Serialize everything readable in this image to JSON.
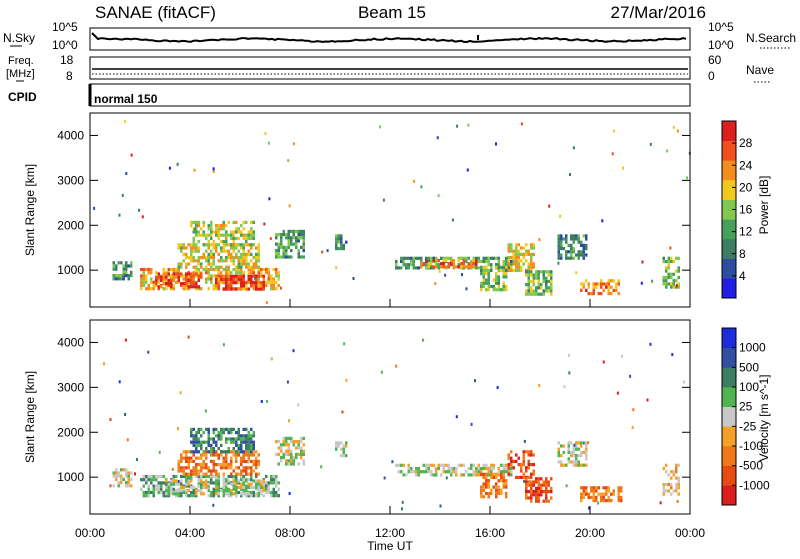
{
  "header": {
    "radar": "SANAE (fitACF)",
    "beam": "Beam 15",
    "date": "27/Mar/2016"
  },
  "sky_panel": {
    "left_label": "N.Sky",
    "right_label": "N.Search",
    "top_tick": "10^5",
    "bottom_tick": "10^0"
  },
  "freq_panel": {
    "left_label_1": "Freq.",
    "left_label_2": "[MHz]",
    "left_ticks": [
      "18",
      "8"
    ],
    "right_label": "Nave",
    "right_ticks": [
      "60",
      "0"
    ]
  },
  "cpid_panel": {
    "label": "CPID",
    "mode": "normal 150"
  },
  "axes": {
    "ylabel": "Slant Range [km]",
    "yticks": [
      1000,
      2000,
      3000,
      4000
    ],
    "xlabel": "Time UT",
    "xticks": [
      "00:00",
      "04:00",
      "08:00",
      "12:00",
      "16:00",
      "20:00",
      "00:00"
    ]
  },
  "colors": {
    "power": [
      "#1e1ee6",
      "#2d4ea0",
      "#3c7d64",
      "#46a05a",
      "#82c850",
      "#f0c81e",
      "#f58c1e",
      "#f0501e",
      "#dc1e1e"
    ],
    "velocity": [
      "#1e2ddc",
      "#3250a0",
      "#3c7d64",
      "#50b450",
      "#c8c8c8",
      "#f5a028",
      "#f07818",
      "#e64b14",
      "#dc1e1e"
    ]
  },
  "chart_data": [
    {
      "type": "heatmap",
      "title": "Power",
      "colorbar_label": "Power [dB]",
      "colorbar_ticks": [
        4,
        8,
        12,
        16,
        20,
        24,
        28
      ],
      "xlabel": "Time UT",
      "ylabel": "Slant Range [km]",
      "xlim": [
        0,
        24
      ],
      "ylim": [
        180,
        4500
      ],
      "clim": [
        0,
        32
      ],
      "blobs": [
        {
          "t0": 0.9,
          "t1": 1.7,
          "r0": 800,
          "r1": 1200,
          "v": 9
        },
        {
          "t0": 2.0,
          "t1": 7.6,
          "r0": 600,
          "r1": 1050,
          "v": 19
        },
        {
          "t0": 2.6,
          "t1": 4.5,
          "r0": 650,
          "r1": 950,
          "v": 27
        },
        {
          "t0": 5.0,
          "t1": 7.0,
          "r0": 600,
          "r1": 900,
          "v": 27
        },
        {
          "t0": 3.5,
          "t1": 6.8,
          "r0": 1050,
          "r1": 1600,
          "v": 17
        },
        {
          "t0": 4.0,
          "t1": 6.6,
          "r0": 1550,
          "r1": 2100,
          "v": 15
        },
        {
          "t0": 7.4,
          "t1": 8.6,
          "r0": 1300,
          "r1": 1900,
          "v": 10
        },
        {
          "t0": 9.8,
          "t1": 10.3,
          "r0": 1450,
          "r1": 1800,
          "v": 9
        },
        {
          "t0": 12.2,
          "t1": 16.8,
          "r0": 1050,
          "r1": 1300,
          "v": 10
        },
        {
          "t0": 13.2,
          "t1": 15.4,
          "r0": 1100,
          "r1": 1250,
          "v": 23
        },
        {
          "t0": 15.6,
          "t1": 16.6,
          "r0": 600,
          "r1": 1100,
          "v": 13
        },
        {
          "t0": 16.7,
          "t1": 17.8,
          "r0": 1000,
          "r1": 1600,
          "v": 18
        },
        {
          "t0": 17.4,
          "t1": 18.5,
          "r0": 500,
          "r1": 1000,
          "v": 13
        },
        {
          "t0": 18.7,
          "t1": 19.9,
          "r0": 1300,
          "r1": 1800,
          "v": 8
        },
        {
          "t0": 19.6,
          "t1": 21.3,
          "r0": 450,
          "r1": 800,
          "v": 22
        },
        {
          "t0": 22.9,
          "t1": 23.6,
          "r0": 600,
          "r1": 1300,
          "v": 13
        }
      ]
    },
    {
      "type": "heatmap",
      "title": "Velocity",
      "colorbar_label": "Velocity [m s^-1]",
      "colorbar_ticks": [
        "1000",
        "500",
        "100",
        "25",
        "-25",
        "-100",
        "-500",
        "-1000"
      ],
      "xlabel": "Time UT",
      "ylabel": "Slant Range [km]",
      "xlim": [
        0,
        24
      ],
      "ylim": [
        180,
        4500
      ],
      "blobs": [
        {
          "t0": 0.9,
          "t1": 1.7,
          "r0": 800,
          "r1": 1200,
          "v": 4
        },
        {
          "t0": 2.0,
          "t1": 7.6,
          "r0": 600,
          "r1": 1050,
          "v": 3
        },
        {
          "t0": 3.0,
          "t1": 4.8,
          "r0": 650,
          "r1": 950,
          "v": 4
        },
        {
          "t0": 5.0,
          "t1": 7.0,
          "r0": 650,
          "r1": 950,
          "v": 4
        },
        {
          "t0": 3.5,
          "t1": 6.8,
          "r0": 1050,
          "r1": 1600,
          "v": 6
        },
        {
          "t0": 4.0,
          "t1": 6.6,
          "r0": 1550,
          "r1": 2100,
          "v": 2
        },
        {
          "t0": 7.4,
          "t1": 8.6,
          "r0": 1300,
          "r1": 1900,
          "v": 4
        },
        {
          "t0": 9.8,
          "t1": 10.3,
          "r0": 1450,
          "r1": 1800,
          "v": 4
        },
        {
          "t0": 12.2,
          "t1": 16.8,
          "r0": 1050,
          "r1": 1300,
          "v": 4
        },
        {
          "t0": 15.6,
          "t1": 16.6,
          "r0": 600,
          "r1": 1100,
          "v": 6
        },
        {
          "t0": 16.7,
          "t1": 17.8,
          "r0": 1000,
          "r1": 1600,
          "v": 7
        },
        {
          "t0": 17.4,
          "t1": 18.5,
          "r0": 500,
          "r1": 1000,
          "v": 7
        },
        {
          "t0": 18.7,
          "t1": 19.9,
          "r0": 1300,
          "r1": 1800,
          "v": 4
        },
        {
          "t0": 19.6,
          "t1": 21.3,
          "r0": 450,
          "r1": 800,
          "v": 6
        },
        {
          "t0": 22.9,
          "t1": 23.6,
          "r0": 600,
          "r1": 1300,
          "v": 5
        }
      ]
    }
  ]
}
